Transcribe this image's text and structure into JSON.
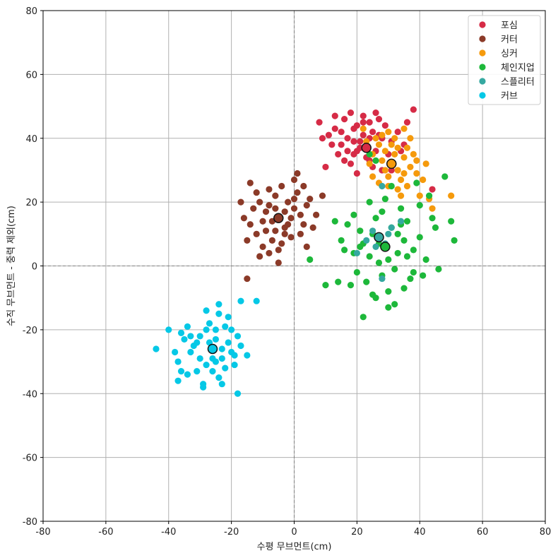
{
  "chart_data": {
    "type": "scatter",
    "title": "",
    "xlabel": "수평 무브먼트(cm)",
    "ylabel": "수직 무브먼트 - 중력 제외(cm)",
    "xlim": [
      -80,
      80
    ],
    "ylim": [
      -80,
      80
    ],
    "xticks": [
      -80,
      -60,
      -40,
      -20,
      0,
      20,
      40,
      60,
      80
    ],
    "yticks": [
      -80,
      -60,
      -40,
      -20,
      0,
      20,
      40,
      60,
      80
    ],
    "grid": true,
    "zero_lines": "dashed",
    "legend_position": "top-right",
    "series": [
      {
        "name": "포심",
        "color": "#d62b46",
        "points": [
          [
            23,
            37
          ],
          [
            17,
            40
          ],
          [
            20,
            44
          ],
          [
            15,
            38
          ],
          [
            25,
            42
          ],
          [
            19,
            35
          ],
          [
            22,
            47
          ],
          [
            28,
            40
          ],
          [
            13,
            43
          ],
          [
            18,
            32
          ],
          [
            26,
            36
          ],
          [
            21,
            39
          ],
          [
            16,
            46
          ],
          [
            24,
            33
          ],
          [
            29,
            44
          ],
          [
            12,
            38
          ],
          [
            20,
            29
          ],
          [
            27,
            46
          ],
          [
            14,
            35
          ],
          [
            31,
            39
          ],
          [
            22,
            41
          ],
          [
            18,
            48
          ],
          [
            25,
            31
          ],
          [
            33,
            42
          ],
          [
            11,
            41
          ],
          [
            17,
            36
          ],
          [
            24,
            45
          ],
          [
            30,
            35
          ],
          [
            19,
            43
          ],
          [
            23,
            34
          ],
          [
            15,
            42
          ],
          [
            21,
            37
          ],
          [
            28,
            30
          ],
          [
            26,
            48
          ],
          [
            35,
            38
          ],
          [
            9,
            40
          ],
          [
            20,
            36
          ],
          [
            27,
            41
          ],
          [
            16,
            33
          ],
          [
            22,
            45
          ],
          [
            38,
            49
          ],
          [
            44,
            24
          ],
          [
            36,
            45
          ],
          [
            10,
            31
          ],
          [
            13,
            47
          ],
          [
            31,
            30
          ],
          [
            8,
            45
          ],
          [
            34,
            36
          ],
          [
            19,
            39
          ],
          [
            24,
            40
          ]
        ],
        "mean": [
          23,
          37
        ]
      },
      {
        "name": "커터",
        "color": "#8b3a28",
        "points": [
          [
            -5,
            15
          ],
          [
            -8,
            19
          ],
          [
            -3,
            12
          ],
          [
            -10,
            14
          ],
          [
            0,
            18
          ],
          [
            -6,
            22
          ],
          [
            -12,
            10
          ],
          [
            -2,
            20
          ],
          [
            -7,
            8
          ],
          [
            2,
            16
          ],
          [
            -9,
            17
          ],
          [
            -4,
            25
          ],
          [
            -14,
            13
          ],
          [
            1,
            23
          ],
          [
            -11,
            20
          ],
          [
            -6,
            11
          ],
          [
            3,
            13
          ],
          [
            -1,
            9
          ],
          [
            -13,
            18
          ],
          [
            -8,
            24
          ],
          [
            4,
            19
          ],
          [
            -5,
            5
          ],
          [
            -15,
            8
          ],
          [
            -3,
            17
          ],
          [
            0,
            27
          ],
          [
            -10,
            6
          ],
          [
            2,
            10
          ],
          [
            -7,
            14
          ],
          [
            5,
            21
          ],
          [
            -16,
            15
          ],
          [
            -2,
            13
          ],
          [
            -9,
            11
          ],
          [
            1,
            29
          ],
          [
            -12,
            23
          ],
          [
            -4,
            7
          ],
          [
            3,
            25
          ],
          [
            -6,
            18
          ],
          [
            6,
            12
          ],
          [
            -17,
            20
          ],
          [
            -1,
            15
          ],
          [
            -8,
            4
          ],
          [
            7,
            16
          ],
          [
            -15,
            -4
          ],
          [
            -5,
            1
          ],
          [
            9,
            22
          ],
          [
            -14,
            26
          ],
          [
            4,
            6
          ],
          [
            -11,
            3
          ],
          [
            0,
            21
          ],
          [
            -3,
            10
          ]
        ],
        "mean": [
          -5,
          15
        ]
      },
      {
        "name": "싱커",
        "color": "#f59a0c",
        "points": [
          [
            31,
            32
          ],
          [
            29,
            36
          ],
          [
            33,
            30
          ],
          [
            27,
            38
          ],
          [
            35,
            34
          ],
          [
            30,
            28
          ],
          [
            25,
            35
          ],
          [
            32,
            40
          ],
          [
            37,
            31
          ],
          [
            28,
            33
          ],
          [
            34,
            27
          ],
          [
            26,
            40
          ],
          [
            36,
            37
          ],
          [
            30,
            42
          ],
          [
            39,
            29
          ],
          [
            24,
            32
          ],
          [
            33,
            24
          ],
          [
            38,
            35
          ],
          [
            29,
            30
          ],
          [
            41,
            27
          ],
          [
            27,
            26
          ],
          [
            35,
            43
          ],
          [
            32,
            35
          ],
          [
            40,
            22
          ],
          [
            23,
            39
          ],
          [
            36,
            25
          ],
          [
            43,
            21
          ],
          [
            31,
            38
          ],
          [
            44,
            18
          ],
          [
            50,
            22
          ],
          [
            42,
            32
          ],
          [
            28,
            41
          ],
          [
            34,
            22
          ],
          [
            25,
            28
          ],
          [
            37,
            40
          ],
          [
            33,
            37
          ],
          [
            30,
            25
          ],
          [
            39,
            33
          ],
          [
            22,
            43
          ],
          [
            35,
            29
          ]
        ],
        "mean": [
          31,
          32
        ]
      },
      {
        "name": "체인지업",
        "color": "#1db83a",
        "points": [
          [
            29,
            6
          ],
          [
            25,
            10
          ],
          [
            33,
            4
          ],
          [
            27,
            1
          ],
          [
            31,
            12
          ],
          [
            22,
            7
          ],
          [
            35,
            8
          ],
          [
            28,
            -3
          ],
          [
            24,
            3
          ],
          [
            36,
            14
          ],
          [
            30,
            -8
          ],
          [
            21,
            11
          ],
          [
            38,
            5
          ],
          [
            26,
            15
          ],
          [
            32,
            -1
          ],
          [
            19,
            4
          ],
          [
            34,
            18
          ],
          [
            23,
            -5
          ],
          [
            40,
            9
          ],
          [
            29,
            21
          ],
          [
            17,
            13
          ],
          [
            37,
            -4
          ],
          [
            26,
            -10
          ],
          [
            42,
            2
          ],
          [
            31,
            25
          ],
          [
            20,
            -2
          ],
          [
            35,
            -7
          ],
          [
            15,
            8
          ],
          [
            44,
            15
          ],
          [
            28,
            17
          ],
          [
            22,
            -16
          ],
          [
            39,
            26
          ],
          [
            24,
            20
          ],
          [
            46,
            -1
          ],
          [
            30,
            -13
          ],
          [
            13,
            14
          ],
          [
            41,
            -3
          ],
          [
            33,
            10
          ],
          [
            18,
            -6
          ],
          [
            48,
            28
          ],
          [
            27,
            7
          ],
          [
            36,
            3
          ],
          [
            14,
            -5
          ],
          [
            43,
            22
          ],
          [
            25,
            -9
          ],
          [
            51,
            8
          ],
          [
            32,
            -12
          ],
          [
            16,
            5
          ],
          [
            40,
            19
          ],
          [
            26,
            33
          ],
          [
            10,
            -6
          ],
          [
            45,
            12
          ],
          [
            5,
            2
          ],
          [
            24,
            35
          ],
          [
            50,
            14
          ],
          [
            19,
            16
          ],
          [
            30,
            2
          ],
          [
            38,
            -2
          ],
          [
            21,
            6
          ],
          [
            34,
            13
          ]
        ],
        "mean": [
          29,
          6
        ]
      },
      {
        "name": "스플리터",
        "color": "#35a8a0",
        "points": [
          [
            27,
            9
          ],
          [
            25,
            11
          ],
          [
            29,
            7
          ],
          [
            23,
            8
          ],
          [
            31,
            12
          ],
          [
            28,
            25
          ],
          [
            20,
            4
          ],
          [
            34,
            14
          ],
          [
            26,
            6
          ],
          [
            30,
            10
          ],
          [
            28,
            -4
          ]
        ],
        "mean": [
          27,
          9
        ]
      },
      {
        "name": "커브",
        "color": "#05c8e6",
        "points": [
          [
            -26,
            -26
          ],
          [
            -30,
            -22
          ],
          [
            -23,
            -29
          ],
          [
            -28,
            -31
          ],
          [
            -21,
            -24
          ],
          [
            -33,
            -27
          ],
          [
            -25,
            -20
          ],
          [
            -19,
            -28
          ],
          [
            -31,
            -33
          ],
          [
            -24,
            -35
          ],
          [
            -35,
            -23
          ],
          [
            -27,
            -18
          ],
          [
            -22,
            -32
          ],
          [
            -37,
            -30
          ],
          [
            -20,
            -20
          ],
          [
            -29,
            -37
          ],
          [
            -17,
            -25
          ],
          [
            -34,
            -19
          ],
          [
            -26,
            -29
          ],
          [
            -32,
            -25
          ],
          [
            -24,
            -15
          ],
          [
            -38,
            -27
          ],
          [
            -18,
            -22
          ],
          [
            -28,
            -14
          ],
          [
            -40,
            -20
          ],
          [
            -23,
            -37
          ],
          [
            -36,
            -33
          ],
          [
            -21,
            -16
          ],
          [
            -30,
            -29
          ],
          [
            -15,
            -28
          ],
          [
            -25,
            -23
          ],
          [
            -37,
            -36
          ],
          [
            -19,
            -31
          ],
          [
            -33,
            -22
          ],
          [
            -27,
            -24
          ],
          [
            -44,
            -26
          ],
          [
            -22,
            -19
          ],
          [
            -29,
            -38
          ],
          [
            -31,
            -24
          ],
          [
            -26,
            -33
          ],
          [
            -18,
            -40
          ],
          [
            -12,
            -11
          ],
          [
            -17,
            -11
          ],
          [
            -24,
            -12
          ],
          [
            -36,
            -21
          ],
          [
            -20,
            -27
          ],
          [
            -34,
            -34
          ],
          [
            -23,
            -26
          ],
          [
            -28,
            -20
          ],
          [
            -25,
            -30
          ]
        ],
        "mean": [
          -26,
          -26
        ]
      }
    ]
  }
}
